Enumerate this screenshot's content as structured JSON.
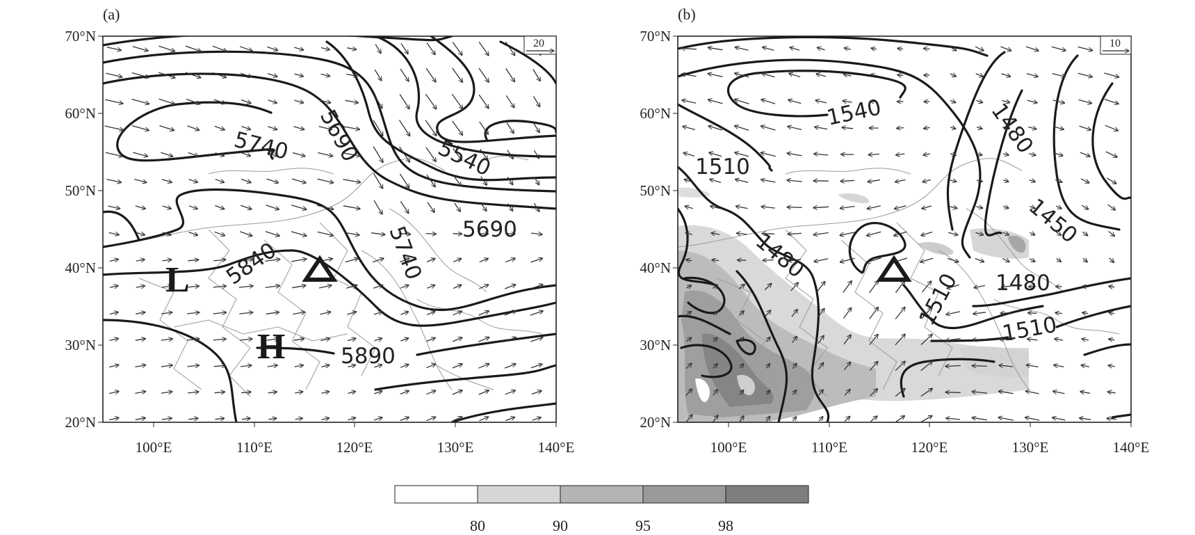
{
  "panels": [
    {
      "label": "(a)",
      "ref_vector": "20",
      "x_ticks": [
        "100°E",
        "110°E",
        "120°E",
        "130°E",
        "140°E"
      ],
      "y_ticks": [
        "20°N",
        "30°N",
        "40°N",
        "50°N",
        "60°N",
        "70°N"
      ],
      "contour_labels": [
        "5740",
        "5690",
        "5540",
        "5690",
        "5740",
        "5840",
        "5890"
      ],
      "centers": [
        "L",
        "H"
      ],
      "marker": "triangle"
    },
    {
      "label": "(b)",
      "ref_vector": "10",
      "x_ticks": [
        "100°E",
        "110°E",
        "120°E",
        "130°E",
        "140°E"
      ],
      "y_ticks": [
        "20°N",
        "30°N",
        "40°N",
        "50°N",
        "60°N",
        "70°N"
      ],
      "contour_labels": [
        "1540",
        "1480",
        "1510",
        "1480",
        "1450",
        "1480",
        "1510",
        "1510"
      ],
      "centers": [],
      "marker": "triangle"
    }
  ],
  "colorbar": {
    "labels": [
      "80",
      "90",
      "95",
      "98"
    ],
    "colors": [
      "#ffffff",
      "#d6d6d6",
      "#b4b4b4",
      "#9a9a9a",
      "#7e7e7e"
    ]
  },
  "map_extent": {
    "lon": [
      95,
      140
    ],
    "lat": [
      20,
      70
    ]
  }
}
